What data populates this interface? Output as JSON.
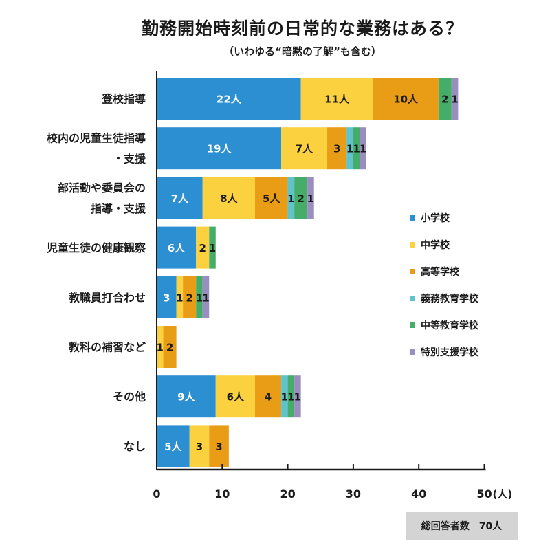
{
  "chart_data": {
    "type": "bar",
    "orientation": "horizontal",
    "stacked": true,
    "title": "勤務開始時刻前の日常的な業務はある？",
    "subtitle": "（いわゆる“暗黙の了解”も含む）",
    "categories": [
      [
        "登校指導"
      ],
      [
        "校内の児童生徒指導",
        "・支援"
      ],
      [
        "部活動や委員会の",
        "指導・支援"
      ],
      [
        "児童生徒の健康観察"
      ],
      [
        "教職員打合わせ"
      ],
      [
        "教科の補習など"
      ],
      [
        "その他"
      ],
      [
        "なし"
      ]
    ],
    "series": [
      {
        "name": "小学校",
        "color": "#2b8fd1",
        "values": [
          22,
          19,
          7,
          6,
          3,
          0,
          9,
          5
        ],
        "labels": [
          "22人",
          "19人",
          "7人",
          "6人",
          "3",
          "",
          "9人",
          "5人"
        ],
        "label_color": "#ffffff"
      },
      {
        "name": "中学校",
        "color": "#fcd13f",
        "values": [
          11,
          7,
          8,
          2,
          1,
          1,
          6,
          3
        ],
        "labels": [
          "11人",
          "7人",
          "8人",
          "2",
          "1",
          "1",
          "6人",
          "3"
        ],
        "label_color": "#1a1a1a"
      },
      {
        "name": "高等学校",
        "color": "#e99c16",
        "values": [
          10,
          3,
          5,
          0,
          2,
          2,
          4,
          3
        ],
        "labels": [
          "10人",
          "3",
          "5人",
          "",
          "2",
          "2",
          "4",
          "3"
        ],
        "label_color": "#1a1a1a"
      },
      {
        "name": "義務教育学校",
        "color": "#5ec3cb",
        "values": [
          0,
          1,
          1,
          0,
          0,
          0,
          1,
          0
        ],
        "labels": [
          "",
          "1",
          "1",
          "",
          "",
          "",
          "1",
          ""
        ],
        "label_color": "#1a1a1a"
      },
      {
        "name": "中等教育学校",
        "color": "#46ac6a",
        "values": [
          2,
          1,
          2,
          1,
          1,
          0,
          1,
          0
        ],
        "labels": [
          "2",
          "1",
          "2",
          "1",
          "1",
          "",
          "1",
          ""
        ],
        "label_color": "#1a1a1a"
      },
      {
        "name": "特別支援学校",
        "color": "#9a8dbf",
        "values": [
          1,
          1,
          1,
          0,
          1,
          0,
          1,
          0
        ],
        "labels": [
          "1",
          "1",
          "1",
          "",
          "1",
          "",
          "1",
          ""
        ],
        "label_color": "#1a1a1a"
      }
    ],
    "xlim": [
      0,
      50
    ],
    "xticks": [
      "0",
      "10",
      "20",
      "30",
      "40",
      "50"
    ],
    "x_unit": "(人)",
    "legend_position": "right"
  },
  "footer": {
    "total_label": "総回答者数",
    "total_value": "70人"
  }
}
